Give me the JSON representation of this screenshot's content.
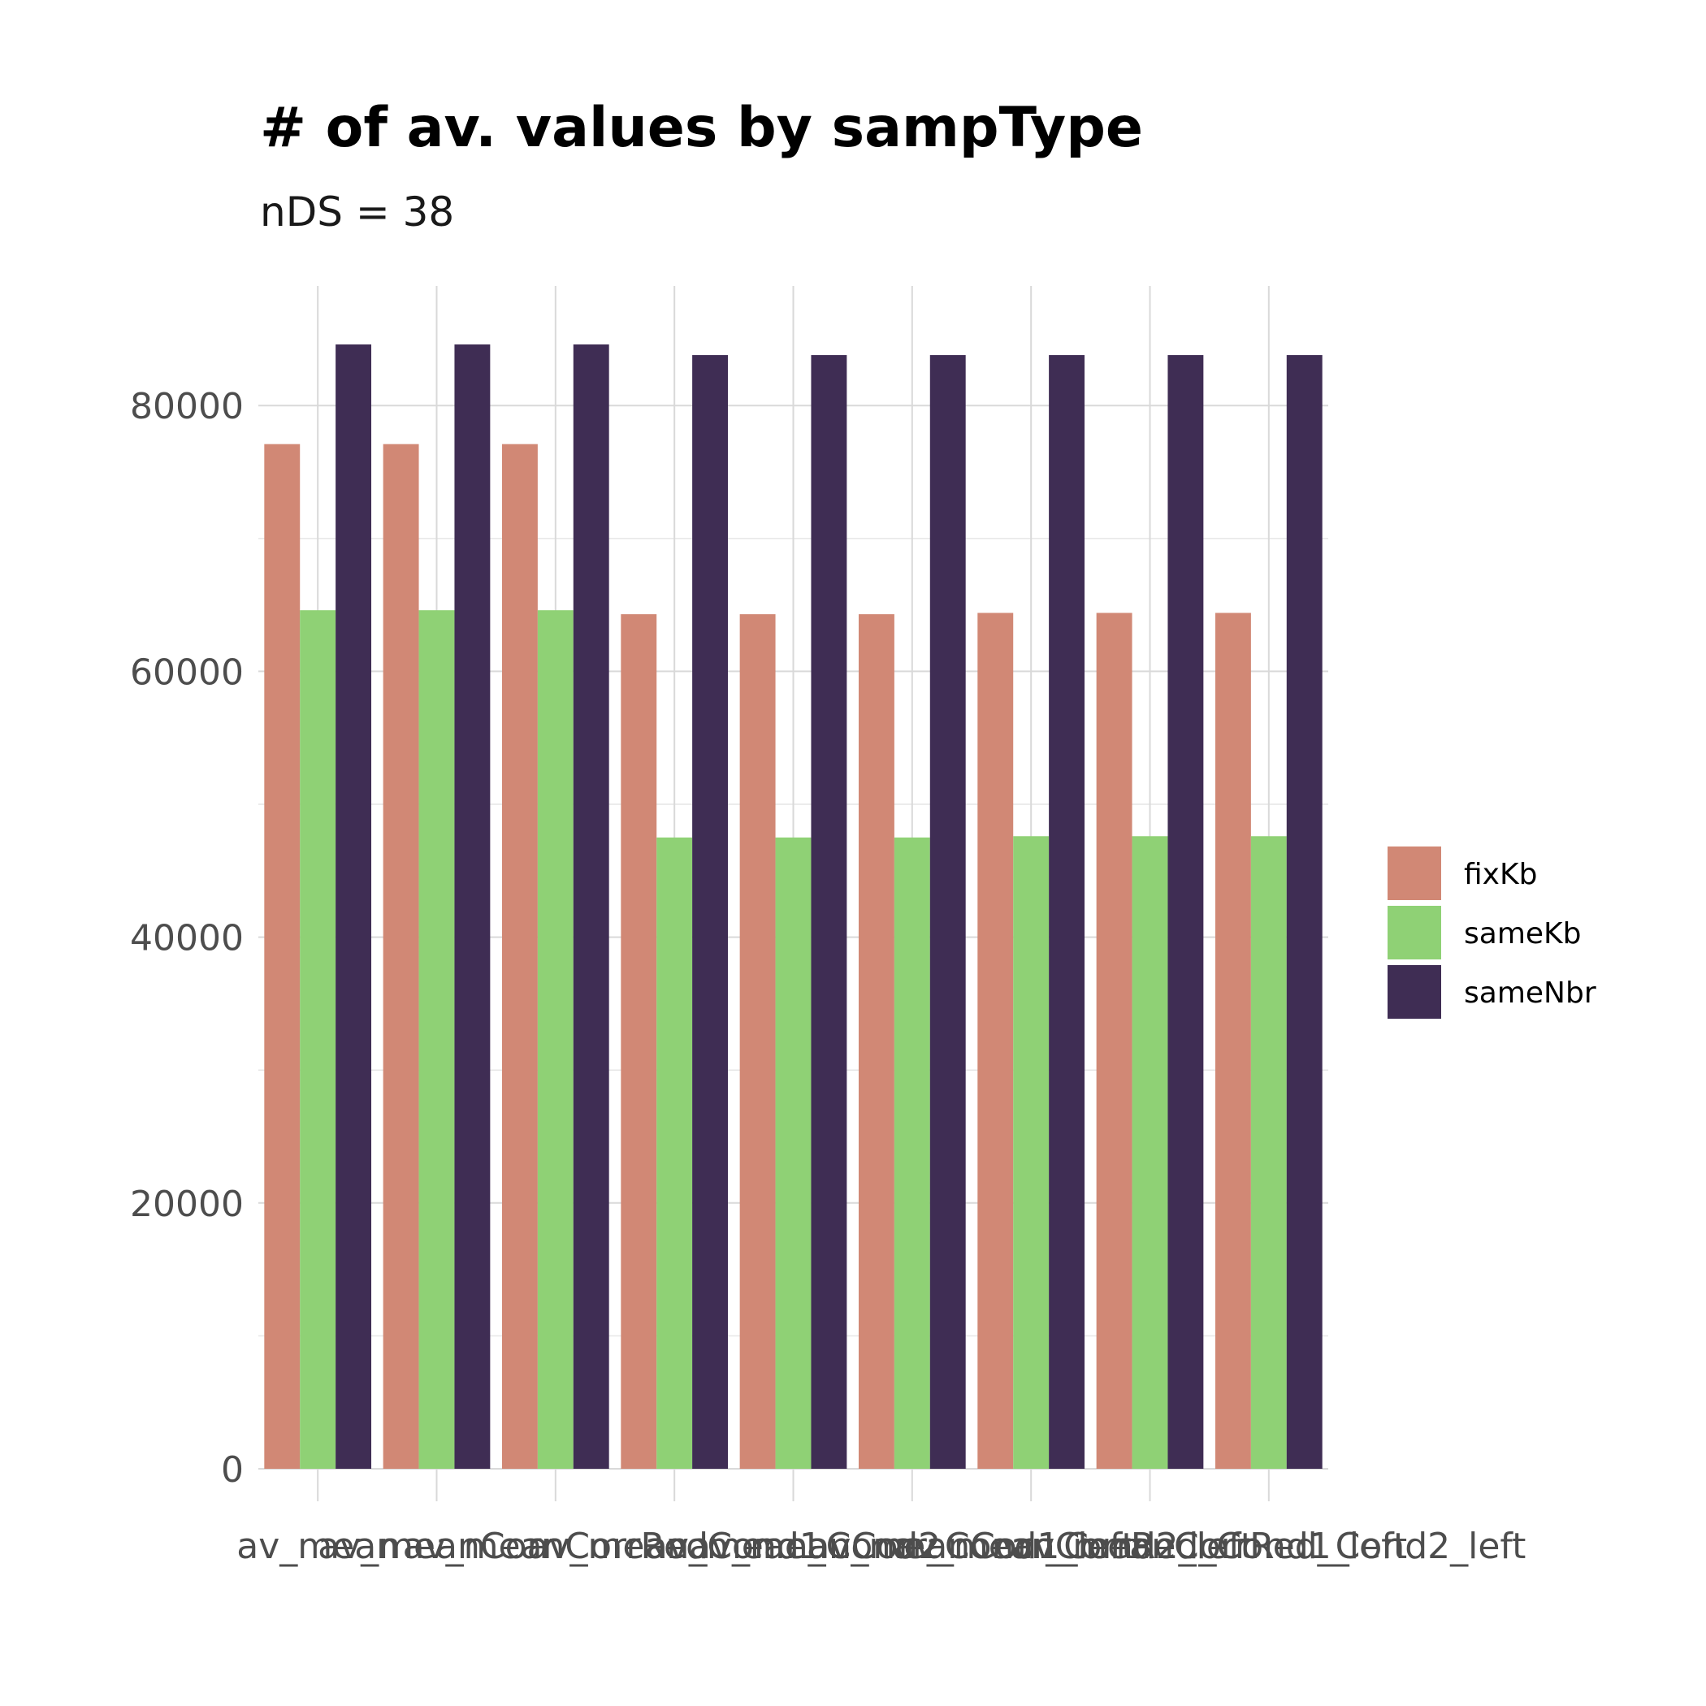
{
  "chart_data": {
    "type": "bar",
    "title": "# of av. values by sampType",
    "subtitle": "nDS = 38",
    "xlabel": "",
    "ylabel": "",
    "categories": [
      "av_mean",
      "av_meanCorr",
      "av_meanCorrRed",
      "av_mean_Cond1",
      "av_mean_Cond2",
      "av_meanCorr_Cond1_left",
      "av_meanCorr_Cond2_left",
      "av_meanCorrRed_Cond1_left",
      "av_meanCorrRed_Cond2_left"
    ],
    "series": [
      {
        "name": "fixKb",
        "color": "#D18875",
        "values": [
          77100,
          77100,
          77100,
          64300,
          64300,
          64300,
          64400,
          64400,
          64400
        ]
      },
      {
        "name": "sameKb",
        "color": "#8FD175",
        "values": [
          64600,
          64600,
          64600,
          47500,
          47500,
          47500,
          47600,
          47600,
          47600
        ]
      },
      {
        "name": "sameNbr",
        "color": "#3F2D54",
        "values": [
          84600,
          84600,
          84600,
          83800,
          83800,
          83800,
          83800,
          83800,
          83800
        ]
      }
    ],
    "ylim": [
      0,
      89000
    ],
    "yticks": [
      "0",
      "20000",
      "40000",
      "60000",
      "80000"
    ],
    "grid": true,
    "legend_position": "right"
  }
}
